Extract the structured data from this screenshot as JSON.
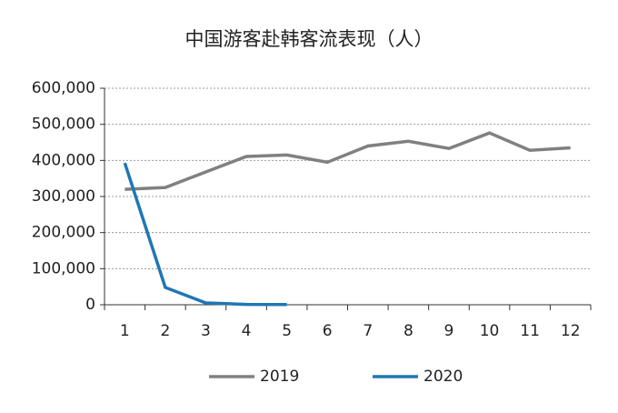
{
  "chart_data": {
    "type": "line",
    "title": "中国游客赴韩客流表现（人）",
    "categories": [
      "1",
      "2",
      "3",
      "4",
      "5",
      "6",
      "7",
      "8",
      "9",
      "10",
      "11",
      "12"
    ],
    "series": [
      {
        "name": "2019",
        "color": "#808080",
        "values": [
          320000,
          325000,
          368000,
          411000,
          415000,
          395000,
          440000,
          453000,
          433000,
          476000,
          428000,
          435000
        ]
      },
      {
        "name": "2020",
        "color": "#1f77b4",
        "values": [
          393000,
          48000,
          5000,
          1000,
          500,
          null,
          null,
          null,
          null,
          null,
          null,
          null
        ]
      }
    ],
    "ylim": [
      0,
      600000
    ],
    "yticks": [
      0,
      {
        "value": 100000,
        "label": "100,000"
      },
      {
        "value": 200000,
        "label": "200,000"
      },
      {
        "value": 300000,
        "label": "300,000"
      },
      {
        "value": 400000,
        "label": "400,000"
      },
      {
        "value": 500000,
        "label": "500,000"
      },
      {
        "value": 600000,
        "label": "600,000"
      }
    ],
    "grid": true,
    "legend": "bottom"
  }
}
